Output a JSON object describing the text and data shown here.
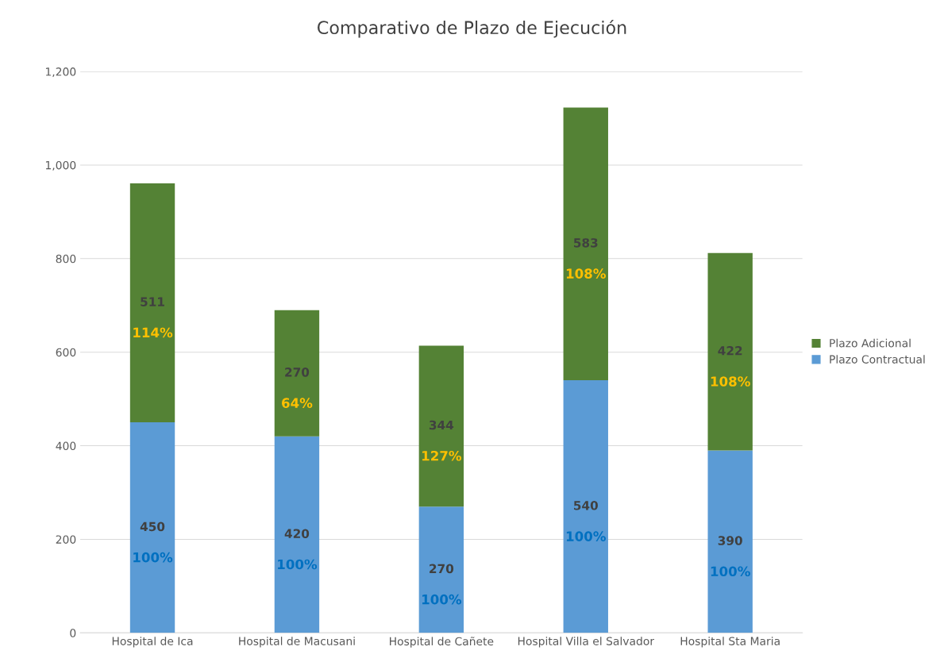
{
  "chart_data": {
    "type": "bar",
    "stacked": true,
    "title": "Comparativo de Plazo de Ejecución",
    "categories": [
      "Hospital de Ica",
      "Hospital de Macusani",
      "Hospital de Cañete",
      "Hospital Villa el Salvador",
      "Hospital Sta Maria"
    ],
    "series": [
      {
        "name": "Plazo Contractual",
        "color": "#5b9bd5",
        "values": [
          450,
          420,
          270,
          540,
          390
        ]
      },
      {
        "name": "Plazo Adicional",
        "color": "#548235",
        "values": [
          511,
          270,
          344,
          583,
          422
        ]
      }
    ],
    "data_labels": true,
    "annotations": [
      "100%",
      "100%",
      "100%",
      "100%",
      "100%",
      "114%",
      "64%",
      "127%",
      "108%",
      "108%"
    ],
    "ylim": [
      0,
      1200
    ],
    "yticks": [
      {
        "value": 0,
        "label": "0"
      },
      {
        "value": 200,
        "label": "200"
      },
      {
        "value": 400,
        "label": "400"
      },
      {
        "value": 600,
        "label": "600"
      },
      {
        "value": 800,
        "label": "800"
      },
      {
        "value": 1000,
        "label": "1,000"
      },
      {
        "value": 1200,
        "label": "1,200"
      }
    ],
    "grid": "y",
    "legend": "right"
  }
}
